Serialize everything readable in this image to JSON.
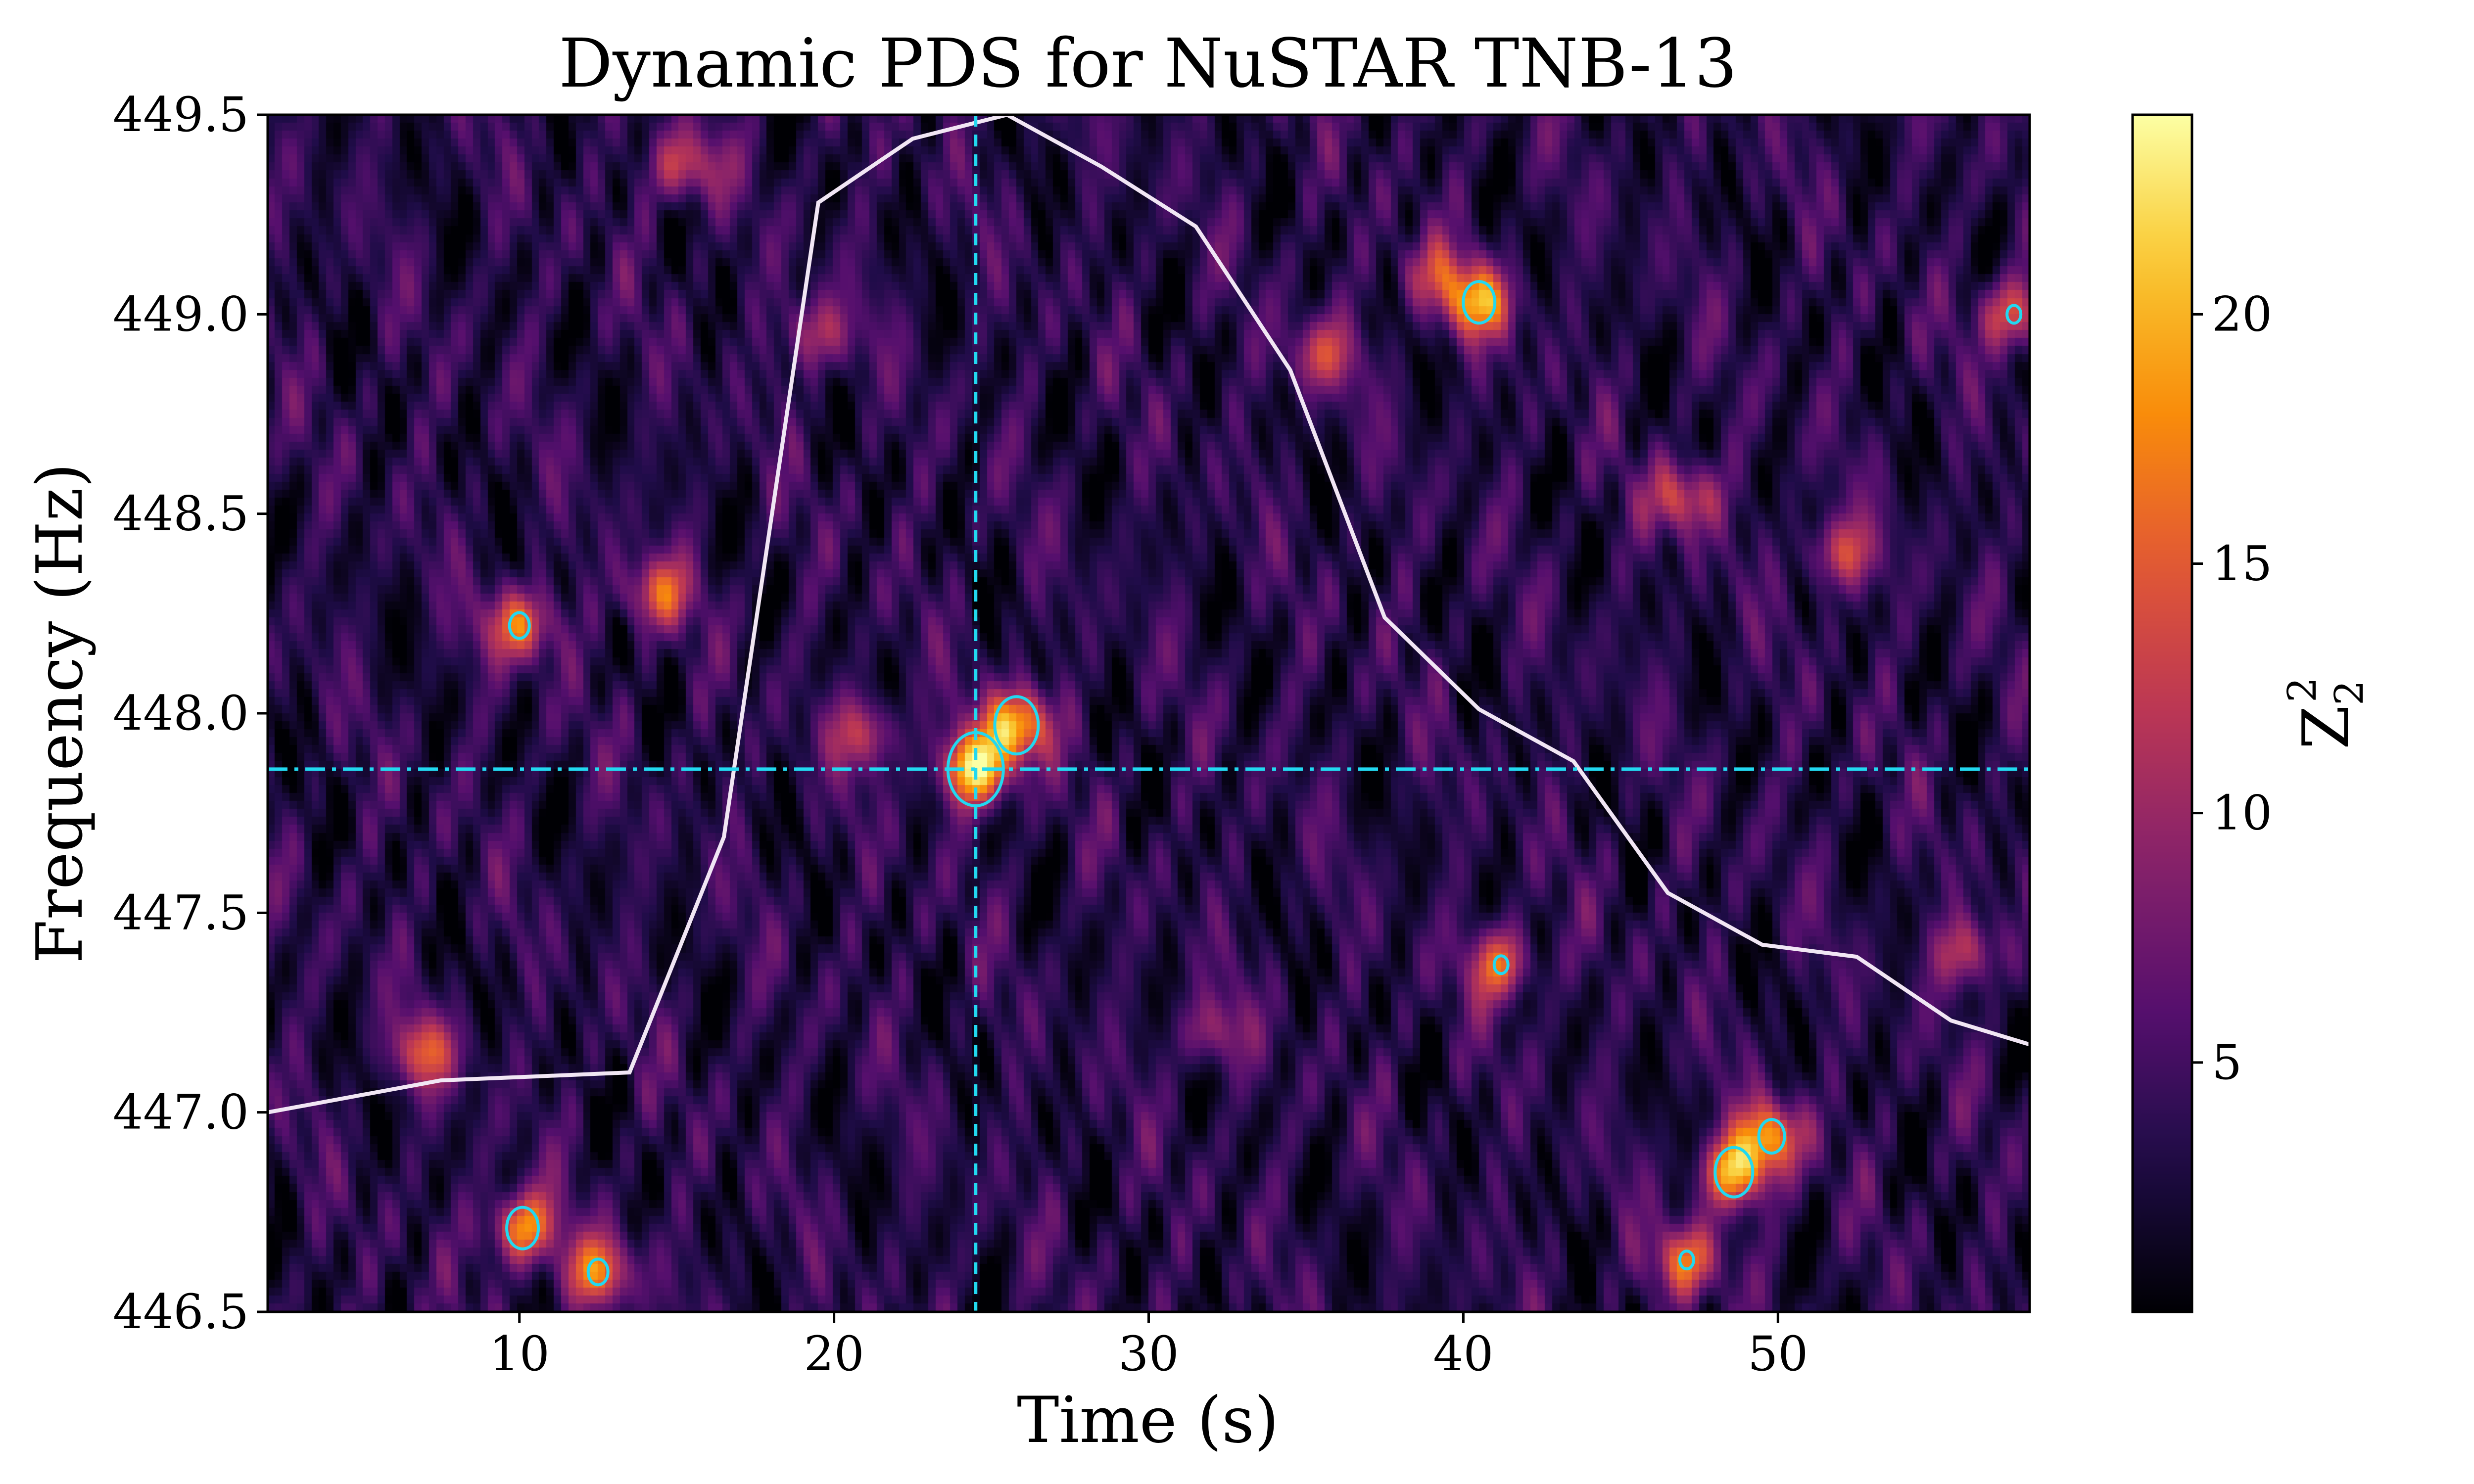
{
  "chart_data": {
    "type": "heatmap",
    "title": "Dynamic PDS for NuSTAR TNB-13",
    "xlabel": "Time (s)",
    "ylabel": "Frequency (Hz)",
    "colorbar_label": "Z",
    "colorbar_label_sub": "2",
    "colorbar_label_sup": "2",
    "xlim": [
      2,
      58
    ],
    "ylim": [
      446.5,
      449.5
    ],
    "x_ticks": [
      10,
      20,
      30,
      40,
      50
    ],
    "y_ticks": [
      446.5,
      447.0,
      447.5,
      448.0,
      448.5,
      449.0,
      449.5
    ],
    "y_tick_labels": [
      "446.5",
      "447.0",
      "447.5",
      "448.0",
      "448.5",
      "449.0",
      "449.5"
    ],
    "colorbar_range": [
      0,
      24
    ],
    "colorbar_ticks": [
      5,
      10,
      15,
      20
    ],
    "colormap": "inferno",
    "grid": false,
    "marker_time": 24.5,
    "marker_frequency": 447.86,
    "marker_color": "#22d8f0",
    "light_curve": {
      "color": "#f1e6f4",
      "points": [
        [
          2.0,
          447.0
        ],
        [
          7.5,
          447.08
        ],
        [
          10.5,
          447.09
        ],
        [
          13.5,
          447.1
        ],
        [
          16.5,
          447.69
        ],
        [
          19.5,
          449.28
        ],
        [
          22.5,
          449.44
        ],
        [
          25.5,
          449.5
        ],
        [
          28.5,
          449.37
        ],
        [
          31.5,
          449.22
        ],
        [
          34.5,
          448.86
        ],
        [
          37.5,
          448.24
        ],
        [
          40.5,
          448.01
        ],
        [
          43.5,
          447.88
        ],
        [
          46.5,
          447.55
        ],
        [
          49.5,
          447.42
        ],
        [
          52.5,
          447.39
        ],
        [
          55.5,
          447.23
        ],
        [
          58.0,
          447.17
        ]
      ]
    },
    "hotspots": [
      {
        "t": 24.5,
        "f": 447.86,
        "z": 23
      },
      {
        "t": 25.8,
        "f": 447.97,
        "z": 21
      },
      {
        "t": 48.6,
        "f": 446.85,
        "z": 20
      },
      {
        "t": 49.8,
        "f": 446.94,
        "z": 18
      },
      {
        "t": 10.1,
        "f": 446.71,
        "z": 19
      },
      {
        "t": 12.5,
        "f": 446.6,
        "z": 17
      },
      {
        "t": 40.5,
        "f": 449.03,
        "z": 19
      },
      {
        "t": 10.0,
        "f": 448.22,
        "z": 17
      },
      {
        "t": 14.4,
        "f": 448.3,
        "z": 15
      },
      {
        "t": 41.2,
        "f": 447.37,
        "z": 16
      },
      {
        "t": 47.1,
        "f": 446.63,
        "z": 16
      },
      {
        "t": 47.0,
        "f": 448.54,
        "z": 15
      },
      {
        "t": 15.3,
        "f": 449.37,
        "z": 14
      },
      {
        "t": 57.5,
        "f": 449.0,
        "z": 16
      },
      {
        "t": 7.0,
        "f": 447.15,
        "z": 14
      },
      {
        "t": 35.5,
        "f": 448.9,
        "z": 13
      },
      {
        "t": 52.0,
        "f": 448.4,
        "z": 14
      },
      {
        "t": 21.0,
        "f": 447.95,
        "z": 13
      },
      {
        "t": 56.0,
        "f": 447.4,
        "z": 13
      },
      {
        "t": 39.0,
        "f": 449.1,
        "z": 12
      },
      {
        "t": 32.0,
        "f": 447.2,
        "z": 11
      },
      {
        "t": 19.5,
        "f": 448.95,
        "z": 12
      }
    ]
  }
}
